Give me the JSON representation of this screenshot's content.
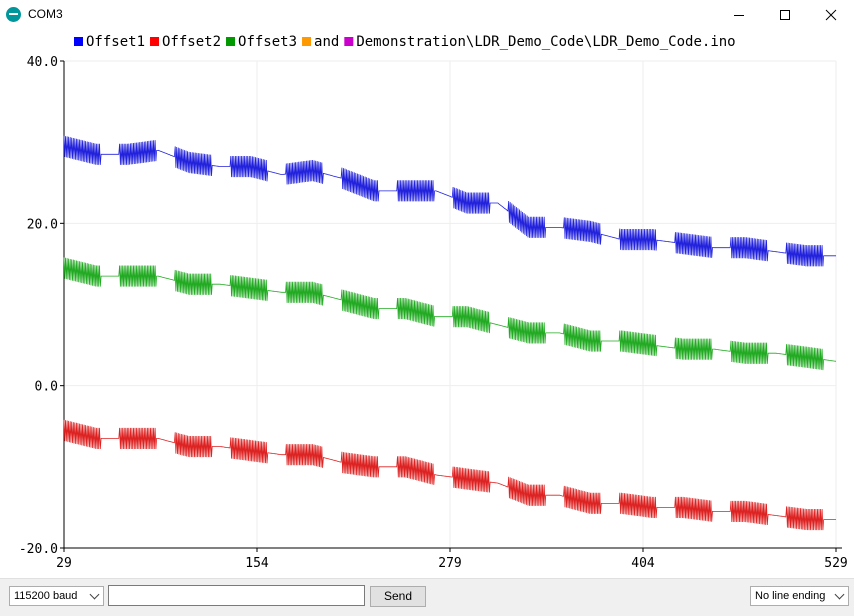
{
  "window": {
    "title": "COM3",
    "minimize_icon": "minimize-icon",
    "maximize_icon": "maximize-icon",
    "close_icon": "close-icon"
  },
  "legend": [
    {
      "label": "Offset1",
      "color": "#0000ff"
    },
    {
      "label": "Offset2",
      "color": "#ff0000"
    },
    {
      "label": "Offset3",
      "color": "#009900"
    },
    {
      "label": "and",
      "color": "#ff9900"
    },
    {
      "label": "Demonstration\\LDR_Demo_Code\\LDR_Demo_Code.ino",
      "color": "#cc00cc"
    }
  ],
  "chart_data": {
    "type": "line",
    "xlim": [
      29,
      529
    ],
    "ylim": [
      -20,
      40
    ],
    "x_ticks": [
      "29",
      "154",
      "279",
      "404",
      "529"
    ],
    "y_ticks": [
      "40.0",
      "20.0",
      "0.0",
      "-20.0"
    ],
    "grid": true,
    "legend_position": "top",
    "series": [
      {
        "name": "Offset1",
        "color": "#2222dd",
        "x": [
          29,
          50,
          70,
          90,
          110,
          130,
          150,
          170,
          190,
          210,
          230,
          250,
          270,
          290,
          310,
          330,
          350,
          370,
          390,
          410,
          430,
          450,
          470,
          490,
          510,
          529
        ],
        "y": [
          29.5,
          28.5,
          28.5,
          29,
          27.5,
          27,
          27,
          26,
          26.5,
          25.5,
          24,
          24,
          24,
          22.5,
          22.5,
          19.5,
          19.5,
          19,
          18,
          18,
          17.5,
          17,
          17,
          16.5,
          16,
          16
        ]
      },
      {
        "name": "Offset2",
        "color": "#dd2222",
        "x": [
          29,
          50,
          70,
          90,
          110,
          130,
          150,
          170,
          190,
          210,
          230,
          250,
          270,
          290,
          310,
          330,
          350,
          370,
          390,
          410,
          430,
          450,
          470,
          490,
          510,
          529
        ],
        "y": [
          -5.5,
          -6.5,
          -6.5,
          -6.5,
          -7.5,
          -7.5,
          -8,
          -8.5,
          -8.5,
          -9.5,
          -10,
          -10,
          -11,
          -11.5,
          -12,
          -13.5,
          -13.5,
          -14.5,
          -14.5,
          -15,
          -15,
          -15.5,
          -15.5,
          -16,
          -16.5,
          -16.5
        ]
      },
      {
        "name": "Offset3",
        "color": "#22aa22",
        "x": [
          29,
          50,
          70,
          90,
          110,
          130,
          150,
          170,
          190,
          210,
          230,
          250,
          270,
          290,
          310,
          330,
          350,
          370,
          390,
          410,
          430,
          450,
          470,
          490,
          510,
          529
        ],
        "y": [
          14.5,
          13.5,
          13.5,
          13.5,
          12.5,
          12.5,
          12,
          11.5,
          11.5,
          10.5,
          9.5,
          9.5,
          8.5,
          8.5,
          7.5,
          6.5,
          6.5,
          5.5,
          5.5,
          5,
          4.5,
          4.5,
          4,
          4,
          3.5,
          3
        ]
      }
    ]
  },
  "bottom": {
    "baud_value": "115200 baud",
    "input_value": "",
    "send_label": "Send",
    "line_ending_value": "No line ending"
  }
}
